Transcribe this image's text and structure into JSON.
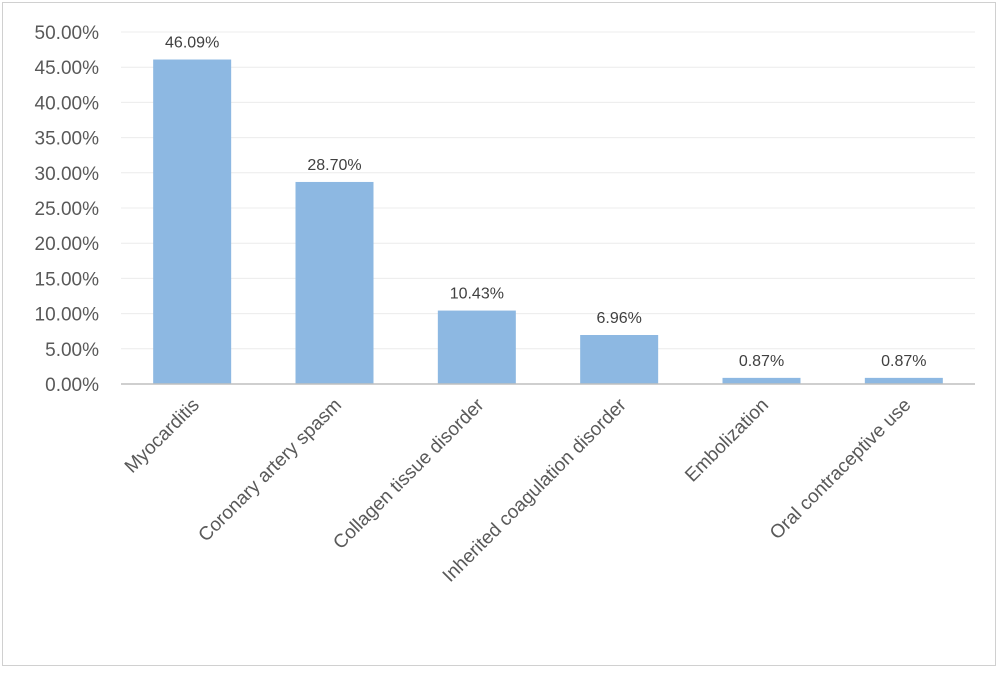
{
  "chart_data": {
    "type": "bar",
    "title": "",
    "xlabel": "",
    "ylabel": "",
    "categories": [
      "Myocarditis",
      "Coronary artery spasm",
      "Collagen tissue disorder",
      "Inherited  coagulation disorder",
      "Embolization",
      "Oral contraceptive  use"
    ],
    "values": [
      46.09,
      28.7,
      10.43,
      6.96,
      0.87,
      0.87
    ],
    "data_labels": [
      "46.09%",
      "28.70%",
      "10.43%",
      "6.96%",
      "0.87%",
      "0.87%"
    ],
    "ylim": [
      0,
      50
    ],
    "yticks": [
      0,
      5,
      10,
      15,
      20,
      25,
      30,
      35,
      40,
      45,
      50
    ],
    "ytick_labels": [
      "0.00%",
      "5.00%",
      "10.00%",
      "15.00%",
      "20.00%",
      "25.00%",
      "30.00%",
      "35.00%",
      "40.00%",
      "45.00%",
      "50.00%"
    ],
    "grid": true,
    "legend": "none",
    "colors": {
      "bar": "#8db8e2",
      "grid": "#ececec",
      "axis": "#bfbfbf",
      "text": "#595959"
    }
  }
}
